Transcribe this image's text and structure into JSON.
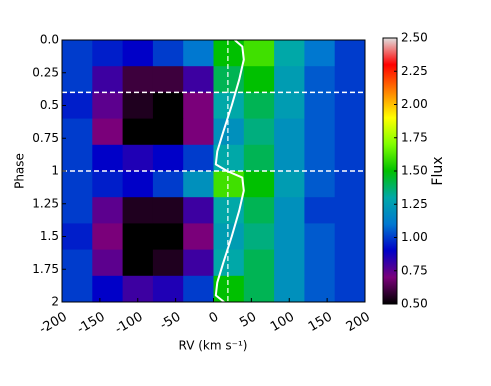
{
  "chart_data": {
    "type": "heatmap",
    "xlabel": "RV (km s⁻¹)",
    "ylabel": "Phase",
    "colorbar_label": "Flux",
    "x_edges": [
      -200,
      -160,
      -120,
      -80,
      -40,
      0,
      40,
      80,
      120,
      160,
      200
    ],
    "y_edges": [
      0,
      0.2,
      0.4,
      0.6,
      0.8,
      1.0,
      1.2,
      1.4,
      1.6,
      1.8,
      2.0
    ],
    "z": [
      [
        1.0,
        0.95,
        0.9,
        1.0,
        1.1,
        1.5,
        1.6,
        1.3,
        1.1,
        1.0
      ],
      [
        1.0,
        0.8,
        0.6,
        0.6,
        0.8,
        1.4,
        1.5,
        1.25,
        1.05,
        1.0
      ],
      [
        0.95,
        0.75,
        0.55,
        0.5,
        0.7,
        1.3,
        1.4,
        1.25,
        1.05,
        1.0
      ],
      [
        1.0,
        0.7,
        0.5,
        0.5,
        0.7,
        1.2,
        1.35,
        1.2,
        1.05,
        1.0
      ],
      [
        1.0,
        0.9,
        0.85,
        0.9,
        1.0,
        1.3,
        1.4,
        1.2,
        1.05,
        1.0
      ],
      [
        1.0,
        0.95,
        0.9,
        1.0,
        1.2,
        1.6,
        1.5,
        1.25,
        1.05,
        1.0
      ],
      [
        1.0,
        0.75,
        0.55,
        0.55,
        0.8,
        1.3,
        1.4,
        1.2,
        1.0,
        1.0
      ],
      [
        0.95,
        0.7,
        0.5,
        0.5,
        0.7,
        1.25,
        1.35,
        1.2,
        1.05,
        1.0
      ],
      [
        1.0,
        0.75,
        0.5,
        0.55,
        0.8,
        1.3,
        1.4,
        1.2,
        1.05,
        1.0
      ],
      [
        1.0,
        0.9,
        0.8,
        0.85,
        1.0,
        1.5,
        1.4,
        1.2,
        1.05,
        1.0
      ]
    ],
    "curve": {
      "color": "#ffffff",
      "x": [
        28,
        38,
        40,
        34,
        24,
        13,
        5,
        3,
        18,
        38,
        40,
        34,
        24,
        13,
        5,
        3,
        14
      ],
      "y": [
        0,
        0.05,
        0.15,
        0.3,
        0.5,
        0.7,
        0.85,
        0.95,
        1.0,
        1.05,
        1.15,
        1.3,
        1.5,
        1.7,
        1.85,
        1.95,
        2.0
      ]
    },
    "hlines": [
      0.4,
      1.0
    ],
    "vline": 19,
    "xlim": [
      -200,
      200
    ],
    "ylim": [
      0,
      2
    ],
    "invert_y": true,
    "xticks": [
      -200,
      -150,
      -100,
      -50,
      0,
      50,
      100,
      150,
      200
    ],
    "yticks": [
      {
        "value": 0,
        "label": "0.0"
      },
      0.25,
      0.5,
      0.75,
      1,
      1.25,
      1.5,
      1.75,
      2
    ],
    "clim": [
      0.5,
      2.5
    ],
    "colormap": [
      "#000000",
      "#7a007a",
      "#0000c8",
      "#0078d0",
      "#00a8a8",
      "#00c000",
      "#80ff00",
      "#ffff00",
      "#ff8000",
      "#ff0000",
      "#e0e0e0"
    ],
    "cticks": [
      {
        "value": 0.5,
        "label": "0.50"
      },
      0.75,
      {
        "value": 1,
        "label": "1.00"
      },
      1.25,
      {
        "value": 1.5,
        "label": "1.50"
      },
      1.75,
      {
        "value": 2,
        "label": "2.00"
      },
      2.25,
      {
        "value": 2.5,
        "label": "2.50"
      }
    ]
  }
}
